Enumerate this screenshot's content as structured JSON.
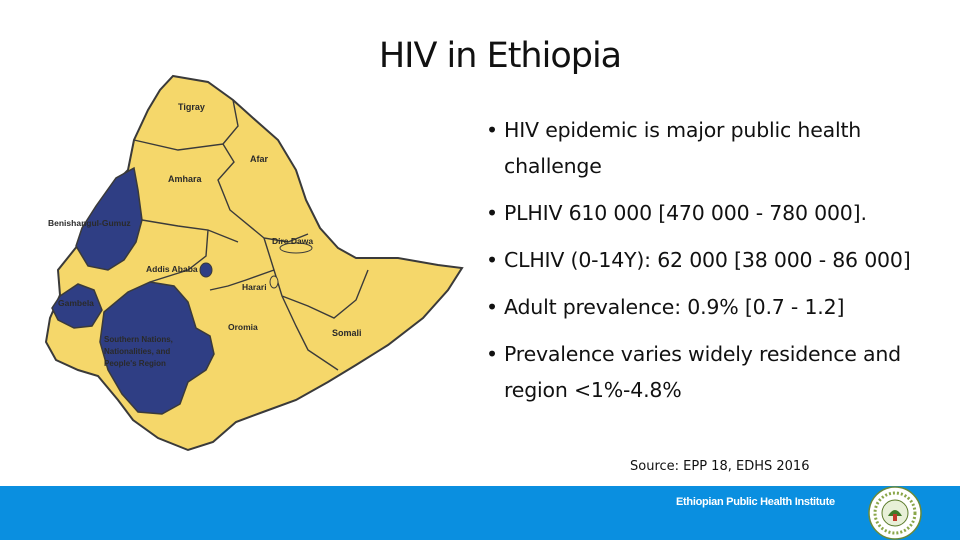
{
  "title": "HIV in Ethiopia",
  "bullets": [
    {
      "symbol": "•",
      "text": "HIV epidemic is major public health challenge"
    },
    {
      "symbol": "•",
      "text": "PLHIV 610 000 [470 000 - 780 000]."
    },
    {
      "symbol": "•",
      "text": "CLHIV (0-14Y):  62 000 [38 000 - 86 000]"
    },
    {
      "symbol": "•",
      "text": "Adult prevalence: 0.9% [0.7 - 1.2]"
    },
    {
      "symbol": "•",
      "text": "Prevalence varies widely residence and region <1%-4.8%"
    }
  ],
  "source": "Source: EPP 18, EDHS 2016",
  "footer": {
    "institute": "Ethiopian Public Health Institute"
  },
  "map": {
    "regions": {
      "tigray": "Tigray",
      "afar": "Afar",
      "amhara": "Amhara",
      "benishangul": "Benishangul-Gumuz",
      "dire_dawa": "Dire Dawa",
      "addis": "Addis Ababa",
      "harari": "Harari",
      "gambela": "Gambela",
      "oromia": "Oromia",
      "somali": "Somali",
      "snnp_1": "Southern Nations,",
      "snnp_2": "Nationalities, and",
      "snnp_3": "People's Region"
    },
    "colors": {
      "land": "#f5d76a",
      "highlight": "#2f3e84",
      "border": "#3a3a3a"
    }
  }
}
